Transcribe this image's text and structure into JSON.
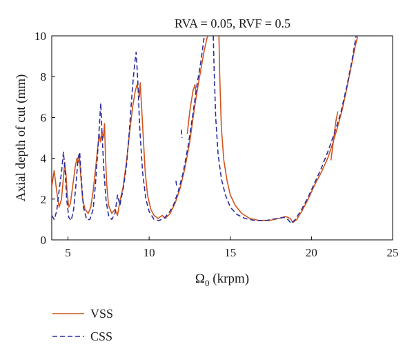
{
  "chart_data": {
    "type": "line",
    "title": "RVA = 0.05, RVF = 0.5",
    "xlabel_main": "Ω",
    "xlabel_sub": "0",
    "xlabel_unit": " (krpm)",
    "ylabel": "Axial depth of cut (mm)",
    "xlim": [
      4,
      25
    ],
    "ylim": [
      0,
      10
    ],
    "xticks": [
      "5",
      "10",
      "15",
      "20",
      "25"
    ],
    "yticks": [
      "0",
      "2",
      "4",
      "6",
      "8",
      "10"
    ],
    "grid": false,
    "legend_position": "bottom-left",
    "series": [
      {
        "name": "VSS",
        "color": "#d2541c",
        "dash": "solid",
        "segments": [
          [
            [
              4.0,
              2.6
            ],
            [
              4.15,
              3.4
            ],
            [
              4.3,
              2.4
            ],
            [
              4.45,
              1.6
            ],
            [
              4.6,
              2.0
            ],
            [
              4.7,
              2.9
            ],
            [
              4.8,
              3.8
            ],
            [
              4.88,
              3.2
            ],
            [
              4.95,
              2.3
            ],
            [
              5.05,
              1.6
            ],
            [
              5.15,
              1.8
            ],
            [
              5.3,
              2.7
            ],
            [
              5.45,
              3.6
            ],
            [
              5.55,
              4.0
            ],
            [
              5.65,
              3.8
            ],
            [
              5.7,
              4.1
            ],
            [
              5.78,
              3.2
            ],
            [
              5.9,
              2.0
            ],
            [
              6.05,
              1.5
            ],
            [
              6.25,
              1.3
            ],
            [
              6.4,
              1.6
            ],
            [
              6.55,
              2.4
            ],
            [
              6.7,
              3.5
            ],
            [
              6.82,
              4.4
            ],
            [
              6.92,
              5.2
            ],
            [
              7.0,
              4.8
            ],
            [
              7.08,
              5.3
            ],
            [
              7.18,
              5.0
            ],
            [
              7.25,
              5.7
            ],
            [
              7.3,
              4.4
            ],
            [
              7.38,
              2.8
            ],
            [
              7.5,
              1.7
            ],
            [
              7.7,
              1.3
            ],
            [
              7.9,
              1.5
            ],
            [
              8.05,
              1.2
            ],
            [
              8.2,
              1.9
            ],
            [
              8.4,
              2.6
            ],
            [
              8.6,
              3.8
            ],
            [
              8.8,
              5.3
            ],
            [
              9.0,
              6.6
            ],
            [
              9.15,
              7.3
            ],
            [
              9.25,
              7.6
            ],
            [
              9.33,
              7.4
            ],
            [
              9.4,
              7.0
            ],
            [
              9.45,
              7.7
            ],
            [
              9.52,
              6.7
            ],
            [
              9.6,
              5.6
            ],
            [
              9.75,
              3.4
            ],
            [
              9.9,
              2.2
            ],
            [
              10.1,
              1.5
            ],
            [
              10.3,
              1.2
            ],
            [
              10.55,
              1.05
            ],
            [
              10.8,
              1.2
            ],
            [
              11.0,
              1.05
            ],
            [
              11.3,
              1.3
            ],
            [
              11.6,
              1.8
            ],
            [
              11.9,
              2.5
            ],
            [
              12.2,
              3.5
            ],
            [
              12.5,
              4.8
            ],
            [
              12.8,
              6.5
            ],
            [
              13.0,
              7.5
            ],
            [
              13.2,
              8.4
            ],
            [
              13.4,
              9.3
            ],
            [
              13.6,
              10.0
            ]
          ],
          [
            [
              14.3,
              10.0
            ],
            [
              14.35,
              8.0
            ],
            [
              14.45,
              5.5
            ],
            [
              14.6,
              3.9
            ],
            [
              14.8,
              2.9
            ],
            [
              15.0,
              2.2
            ],
            [
              15.3,
              1.7
            ],
            [
              15.7,
              1.3
            ],
            [
              16.2,
              1.05
            ],
            [
              16.8,
              0.95
            ],
            [
              17.4,
              0.95
            ],
            [
              18.0,
              1.05
            ],
            [
              18.4,
              1.15
            ],
            [
              18.7,
              1.05
            ],
            [
              18.85,
              0.85
            ],
            [
              19.1,
              1.0
            ],
            [
              19.4,
              1.4
            ],
            [
              19.8,
              2.0
            ],
            [
              20.2,
              2.7
            ],
            [
              20.6,
              3.3
            ],
            [
              21.0,
              4.0
            ],
            [
              21.3,
              4.7
            ],
            [
              21.6,
              5.5
            ],
            [
              21.9,
              6.4
            ],
            [
              22.2,
              7.5
            ],
            [
              22.5,
              8.7
            ],
            [
              22.7,
              9.5
            ],
            [
              22.85,
              10.0
            ]
          ],
          [
            [
              12.35,
              5.2
            ],
            [
              12.5,
              6.3
            ],
            [
              12.7,
              7.3
            ],
            [
              12.82,
              7.6
            ],
            [
              12.9,
              7.2
            ]
          ],
          [
            [
              21.2,
              3.9
            ],
            [
              21.35,
              4.8
            ],
            [
              21.5,
              5.8
            ],
            [
              21.62,
              6.3
            ]
          ]
        ]
      },
      {
        "name": "CSS",
        "color": "#2b2e9e",
        "dash": "dashed",
        "segments": [
          [
            [
              4.0,
              1.2
            ],
            [
              4.15,
              1.0
            ],
            [
              4.3,
              1.4
            ],
            [
              4.45,
              2.4
            ],
            [
              4.6,
              3.3
            ],
            [
              4.72,
              4.3
            ],
            [
              4.82,
              3.4
            ],
            [
              4.92,
              2.0
            ],
            [
              5.05,
              1.1
            ],
            [
              5.2,
              0.95
            ],
            [
              5.35,
              1.5
            ],
            [
              5.5,
              2.8
            ],
            [
              5.62,
              4.0
            ],
            [
              5.72,
              4.3
            ],
            [
              5.82,
              3.0
            ],
            [
              5.95,
              1.6
            ],
            [
              6.15,
              1.0
            ],
            [
              6.35,
              1.0
            ],
            [
              6.55,
              1.5
            ],
            [
              6.7,
              2.8
            ],
            [
              6.85,
              4.5
            ],
            [
              6.95,
              5.8
            ],
            [
              7.02,
              6.7
            ],
            [
              7.1,
              5.2
            ],
            [
              7.22,
              3.3
            ],
            [
              7.35,
              1.9
            ],
            [
              7.5,
              1.2
            ],
            [
              7.7,
              1.0
            ],
            [
              7.9,
              1.3
            ],
            [
              8.05,
              2.2
            ],
            [
              8.2,
              1.7
            ],
            [
              8.4,
              2.5
            ],
            [
              8.6,
              3.6
            ],
            [
              8.75,
              5.0
            ],
            [
              8.9,
              6.7
            ],
            [
              9.02,
              7.9
            ],
            [
              9.12,
              8.7
            ],
            [
              9.2,
              9.2
            ],
            [
              9.3,
              7.8
            ],
            [
              9.42,
              5.5
            ],
            [
              9.6,
              3.3
            ],
            [
              9.8,
              2.0
            ],
            [
              10.0,
              1.4
            ],
            [
              10.3,
              1.0
            ],
            [
              10.6,
              0.95
            ],
            [
              10.9,
              1.05
            ],
            [
              11.2,
              1.3
            ],
            [
              11.5,
              1.7
            ],
            [
              11.8,
              2.4
            ],
            [
              12.1,
              3.3
            ],
            [
              12.4,
              4.6
            ],
            [
              12.7,
              6.2
            ],
            [
              12.95,
              7.6
            ],
            [
              13.2,
              8.8
            ],
            [
              13.4,
              10.0
            ]
          ],
          [
            [
              13.95,
              10.0
            ],
            [
              14.0,
              8.5
            ],
            [
              14.1,
              6.0
            ],
            [
              14.25,
              4.2
            ],
            [
              14.45,
              3.0
            ],
            [
              14.7,
              2.2
            ],
            [
              15.0,
              1.6
            ],
            [
              15.4,
              1.25
            ],
            [
              15.9,
              1.05
            ],
            [
              16.5,
              0.95
            ],
            [
              17.2,
              0.95
            ],
            [
              17.9,
              1.05
            ],
            [
              18.3,
              1.1
            ],
            [
              18.55,
              1.0
            ],
            [
              18.75,
              0.8
            ],
            [
              19.0,
              1.0
            ],
            [
              19.4,
              1.5
            ],
            [
              19.8,
              2.1
            ],
            [
              20.2,
              2.8
            ],
            [
              20.6,
              3.5
            ],
            [
              21.0,
              4.3
            ],
            [
              21.4,
              5.2
            ],
            [
              21.8,
              6.2
            ],
            [
              22.2,
              7.6
            ],
            [
              22.5,
              8.8
            ],
            [
              22.75,
              10.0
            ]
          ],
          [
            [
              11.98,
              5.4
            ],
            [
              12.03,
              5.0
            ]
          ],
          [
            [
              11.65,
              2.9
            ],
            [
              11.7,
              2.6
            ]
          ]
        ]
      }
    ]
  }
}
